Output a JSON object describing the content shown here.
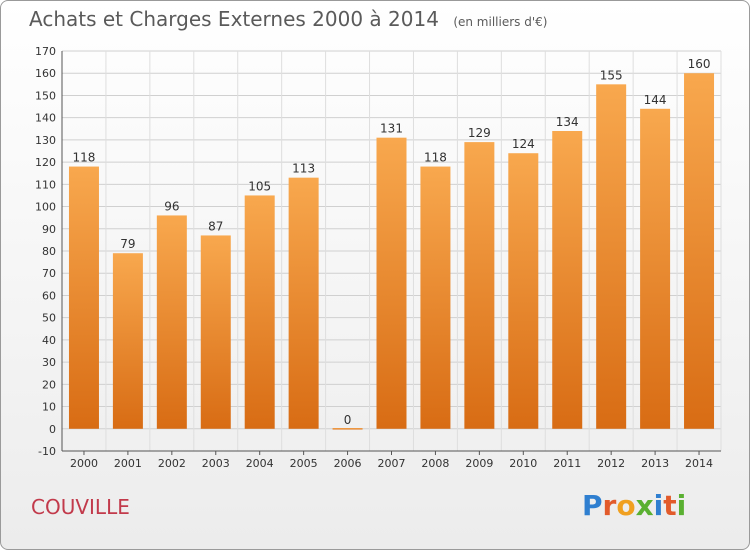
{
  "title": "Achats et Charges Externes 2000 à 2014",
  "subtitle": "(en milliers d'€)",
  "commune": "COUVILLE",
  "logo": {
    "letters": [
      "P",
      "r",
      "o",
      "x",
      "i",
      "t",
      "i"
    ],
    "colors": [
      "#2f7fd0",
      "#e25b2b",
      "#f0a020",
      "#5ab031",
      "#2f7fd0",
      "#e25b2b",
      "#5ab031"
    ]
  },
  "chart_data": {
    "type": "bar",
    "categories": [
      "2000",
      "2001",
      "2002",
      "2003",
      "2004",
      "2005",
      "2006",
      "2007",
      "2008",
      "2009",
      "2010",
      "2011",
      "2012",
      "2013",
      "2014"
    ],
    "values": [
      118,
      79,
      96,
      87,
      105,
      113,
      0,
      131,
      118,
      129,
      124,
      134,
      155,
      144,
      160
    ],
    "ylim": [
      -10,
      170
    ],
    "yticks": [
      -10,
      0,
      10,
      20,
      30,
      40,
      50,
      60,
      70,
      80,
      90,
      100,
      110,
      120,
      130,
      140,
      150,
      160,
      170
    ],
    "grid": true,
    "bar_color": "#f0922f"
  }
}
